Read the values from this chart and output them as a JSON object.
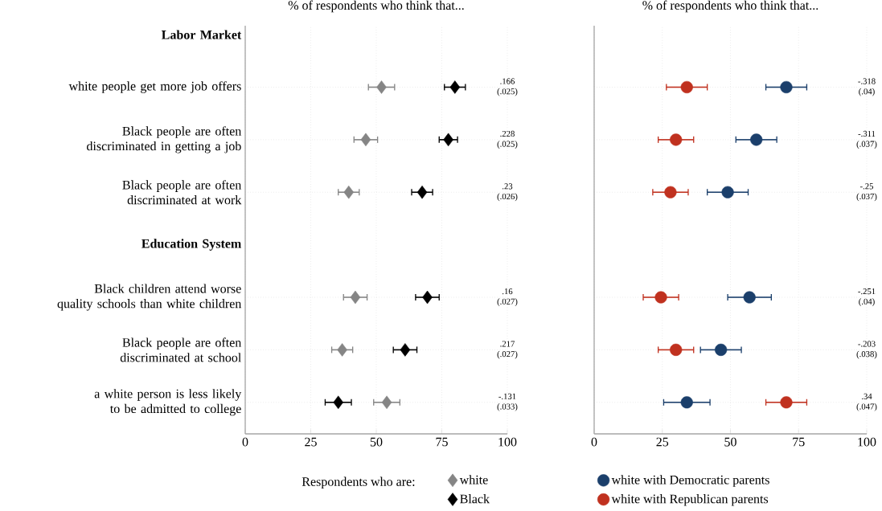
{
  "chart_data": [
    {
      "type": "scatter",
      "orientation": "horizontal",
      "title": "% of respondents who think that...",
      "categories": [
        "Labor Market",
        "white people get more job offers",
        "Black people are often discriminated in getting a job",
        "Black people are often discriminated at work",
        "Education System",
        "Black children attend worse quality schools than white children",
        "Black people are often discriminated at school",
        "a white person is less likely to be admitted to college"
      ],
      "series": [
        {
          "name": "white",
          "color": "#858585",
          "values": [
            null,
            52,
            46,
            39.5,
            null,
            42,
            37,
            54
          ],
          "errors": [
            null,
            5,
            4.5,
            4,
            null,
            4.5,
            4,
            5
          ]
        },
        {
          "name": "Black",
          "color": "#000000",
          "values": [
            null,
            80,
            77.5,
            67.5,
            null,
            69.5,
            61,
            35.5
          ],
          "errors": [
            null,
            4,
            3.5,
            4,
            null,
            4.5,
            4.5,
            5
          ]
        }
      ],
      "xlim": [
        0,
        100
      ],
      "xticks": [
        0,
        25,
        50,
        75,
        100
      ],
      "grid": true,
      "legend": "bottom",
      "legend_title": "Respondents who are:",
      "marker": "diamond",
      "annotations": [
        ".166 (.025)",
        ".228 (.025)",
        ".23 (.026)",
        ".16 (.027)",
        ".217 (.027)",
        "-.131 (.033)"
      ]
    },
    {
      "type": "scatter",
      "orientation": "horizontal",
      "title": "% of respondents who think that...",
      "categories": [
        null,
        null,
        null,
        null,
        null,
        null,
        null,
        null
      ],
      "series": [
        {
          "name": "white with Democratic parents",
          "color": "#1b3f6b",
          "values": [
            null,
            70.5,
            59.5,
            49,
            null,
            57,
            46.5,
            34
          ],
          "errors": [
            null,
            7.5,
            7.5,
            7.5,
            null,
            8,
            7.5,
            8.5
          ]
        },
        {
          "name": "white with Republican parents",
          "color": "#c0311f",
          "values": [
            null,
            34,
            30,
            28,
            null,
            24.5,
            30,
            70.5
          ],
          "errors": [
            null,
            7.5,
            6.5,
            6.5,
            null,
            6.5,
            6.5,
            7.5
          ]
        }
      ],
      "xlim": [
        0,
        100
      ],
      "xticks": [
        0,
        25,
        50,
        75,
        100
      ],
      "grid": true,
      "legend": "bottom",
      "marker": "circle",
      "annotations": [
        "-.318 (.04)",
        "-.311 (.037)",
        "-.25 (.037)",
        "-.251 (.04)",
        "-.203 (.038)",
        ".34 (.047)"
      ]
    }
  ]
}
